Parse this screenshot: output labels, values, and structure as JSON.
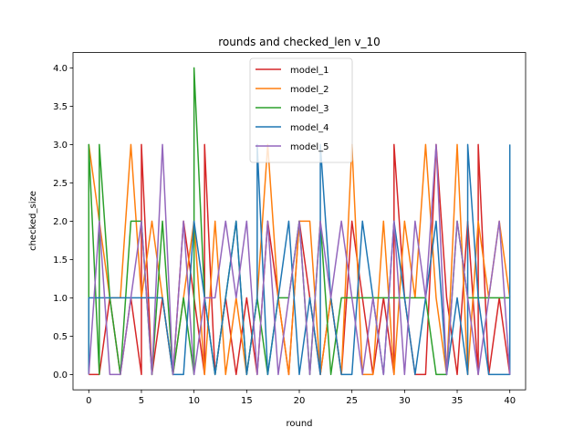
{
  "chart_data": {
    "type": "line",
    "title": "rounds and checked_len v_10",
    "xlabel": "round",
    "ylabel": "checked_size",
    "xlim": [
      -1.5,
      41.5
    ],
    "ylim": [
      -0.2,
      4.2
    ],
    "xticks": [
      0,
      5,
      10,
      15,
      20,
      25,
      30,
      35,
      40
    ],
    "yticks": [
      0.0,
      0.5,
      1.0,
      1.5,
      2.0,
      2.5,
      3.0,
      3.5,
      4.0
    ],
    "ytick_labels": [
      "0.0",
      "0.5",
      "1.0",
      "1.5",
      "2.0",
      "2.5",
      "3.0",
      "3.5",
      "4.0"
    ],
    "grid": false,
    "legend_position": "top-center",
    "series": [
      {
        "name": "model_1",
        "color": "#d62728",
        "x": [
          0,
          1,
          2,
          3,
          4,
          5,
          5,
          6,
          7,
          8,
          9,
          10,
          11,
          11,
          12,
          13,
          14,
          15,
          16,
          17,
          18,
          19,
          20,
          21,
          22,
          23,
          24,
          25,
          26,
          27,
          28,
          29,
          29,
          30,
          31,
          32,
          33,
          34,
          35,
          36,
          37,
          37,
          38,
          39,
          40
        ],
        "y": [
          0,
          0,
          1,
          0,
          1,
          0,
          3,
          0,
          1,
          0,
          2,
          1,
          0,
          3,
          0,
          1,
          0,
          1,
          0,
          2,
          1,
          0,
          2,
          1,
          0,
          1,
          0,
          2,
          1,
          0,
          1,
          0,
          3,
          1,
          0,
          0,
          3,
          1,
          0,
          2,
          0,
          3,
          0,
          1,
          0
        ]
      },
      {
        "name": "model_2",
        "color": "#ff7f0e",
        "x": [
          0,
          1,
          2,
          3,
          4,
          5,
          6,
          7,
          8,
          9,
          10,
          11,
          12,
          13,
          14,
          15,
          16,
          17,
          18,
          19,
          20,
          21,
          22,
          23,
          24,
          25,
          26,
          27,
          28,
          29,
          30,
          31,
          32,
          33,
          34,
          35,
          36,
          37,
          38,
          39,
          40
        ],
        "y": [
          3,
          2,
          1,
          1,
          3,
          1,
          2,
          1,
          0,
          1,
          2,
          0,
          2,
          0,
          1,
          0,
          1,
          3,
          1,
          0,
          2,
          2,
          0,
          1,
          0,
          3,
          0,
          0,
          2,
          0,
          2,
          1,
          3,
          1,
          0,
          3,
          0,
          2,
          1,
          2,
          1
        ]
      },
      {
        "name": "model_3",
        "color": "#2ca02c",
        "x": [
          0,
          0,
          1,
          1,
          2,
          3,
          4,
          5,
          6,
          7,
          8,
          9,
          10,
          10,
          11,
          12,
          13,
          14,
          15,
          16,
          17,
          18,
          19,
          20,
          21,
          22,
          23,
          24,
          25,
          26,
          27,
          28,
          29,
          30,
          31,
          32,
          33,
          34,
          35,
          36,
          37,
          38,
          39,
          40
        ],
        "y": [
          0,
          3,
          0,
          3,
          1,
          0,
          2,
          2,
          0,
          2,
          0,
          1,
          0,
          4,
          1,
          0,
          1,
          2,
          0,
          1,
          0,
          1,
          1,
          2,
          0,
          2,
          0,
          1,
          1,
          1,
          1,
          1,
          1,
          1,
          1,
          1,
          0,
          0,
          2,
          1,
          1,
          1,
          1,
          1
        ]
      },
      {
        "name": "model_4",
        "color": "#1f77b4",
        "x": [
          0,
          0,
          1,
          2,
          3,
          4,
          5,
          6,
          7,
          8,
          9,
          10,
          11,
          12,
          13,
          14,
          15,
          16,
          16,
          17,
          18,
          19,
          20,
          21,
          22,
          22,
          23,
          24,
          25,
          26,
          27,
          28,
          29,
          30,
          31,
          32,
          33,
          34,
          35,
          36,
          36,
          37,
          38,
          39,
          40,
          40
        ],
        "y": [
          0,
          1,
          1,
          1,
          1,
          1,
          1,
          1,
          1,
          0,
          0,
          2,
          1,
          0,
          1,
          2,
          0,
          1,
          3,
          0,
          1,
          2,
          0,
          1,
          0,
          3,
          1,
          0,
          0,
          2,
          1,
          0,
          2,
          1,
          0,
          1,
          2,
          0,
          1,
          0,
          3,
          1,
          0,
          0,
          0,
          3
        ]
      },
      {
        "name": "model_5",
        "color": "#9467bd",
        "x": [
          0,
          1,
          2,
          3,
          4,
          5,
          6,
          7,
          8,
          9,
          10,
          11,
          12,
          13,
          14,
          15,
          16,
          17,
          18,
          19,
          20,
          21,
          22,
          23,
          24,
          25,
          26,
          27,
          28,
          29,
          30,
          31,
          32,
          33,
          34,
          35,
          36,
          37,
          38,
          39,
          40
        ],
        "y": [
          0,
          2,
          0,
          0,
          1,
          2,
          0,
          3,
          0,
          2,
          0,
          1,
          1,
          2,
          1,
          2,
          0,
          2,
          0,
          1,
          2,
          0,
          2,
          1,
          2,
          1,
          0,
          1,
          0,
          2,
          0,
          2,
          1,
          3,
          0,
          2,
          1,
          0,
          1,
          2,
          0
        ]
      }
    ]
  }
}
